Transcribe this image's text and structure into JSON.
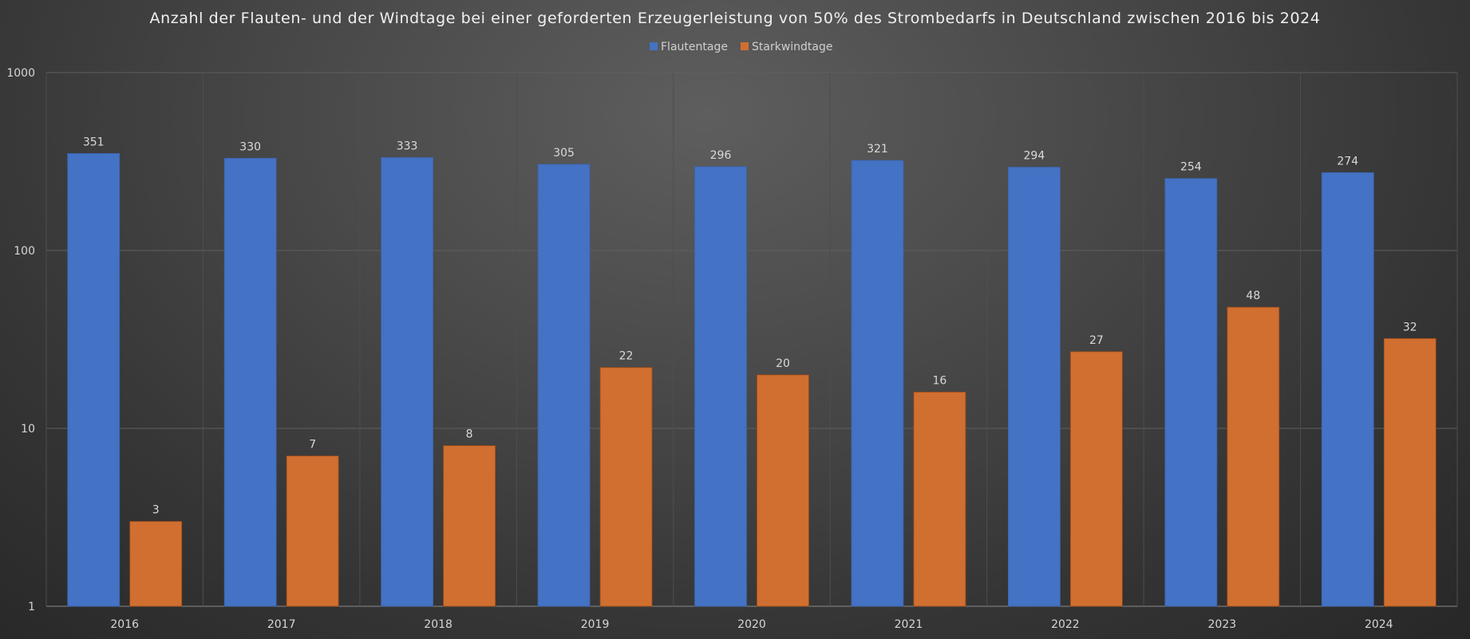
{
  "chart_data": {
    "type": "bar",
    "title": "Anzahl der Flauten- und der Windtage bei einer geforderten Erzeugerleistung von 50% des Strombedarfs in Deutschland zwischen 2016 bis 2024",
    "categories": [
      "2016",
      "2017",
      "2018",
      "2019",
      "2020",
      "2021",
      "2022",
      "2023",
      "2024"
    ],
    "series": [
      {
        "name": "Flautentage",
        "color": "#4472c4",
        "values": [
          351,
          330,
          333,
          305,
          296,
          321,
          294,
          254,
          274
        ]
      },
      {
        "name": "Starkwindtage",
        "color": "#d06f30",
        "values": [
          3,
          7,
          8,
          22,
          20,
          16,
          27,
          48,
          32
        ]
      }
    ],
    "yscale": "log",
    "ylim": [
      1,
      1000
    ],
    "yticks": [
      1,
      10,
      100,
      1000
    ],
    "grid": true,
    "legend_position": "top-center",
    "data_labels": true,
    "xlabel": "",
    "ylabel": ""
  }
}
